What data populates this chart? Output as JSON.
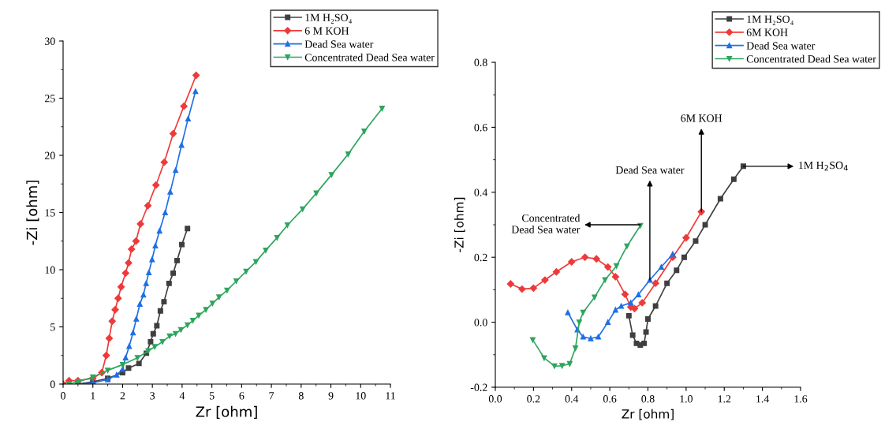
{
  "chart_data": [
    {
      "type": "line",
      "xlabel": "Zr [ohm]",
      "ylabel": "-Zi [ohm]",
      "xlim": [
        0,
        11
      ],
      "ylim": [
        0,
        30
      ],
      "xticks": [
        0,
        1,
        2,
        3,
        4,
        5,
        6,
        7,
        8,
        9,
        10,
        11
      ],
      "yticks": [
        0,
        5,
        10,
        15,
        20,
        25,
        30
      ],
      "legend": "top right",
      "grid": false,
      "series": [
        {
          "name": "1M H₂SO₄",
          "color": "#3f3f3f",
          "marker": "square",
          "x": [
            0.5,
            1.0,
            1.5,
            2.0,
            2.2,
            2.55,
            2.8,
            2.94,
            3.03,
            3.15,
            3.27,
            3.39,
            3.56,
            3.7,
            3.83,
            3.99,
            4.18
          ],
          "values": [
            0,
            0.2,
            0.5,
            1.0,
            1.4,
            1.8,
            2.7,
            3.7,
            4.4,
            5.1,
            6.4,
            7.2,
            8.8,
            9.7,
            10.8,
            12.2,
            13.6
          ]
        },
        {
          "name": "6 M KOH",
          "color": "#ee3a3a",
          "marker": "diamond",
          "x": [
            0,
            0.2,
            0.5,
            1.0,
            1.3,
            1.45,
            1.55,
            1.65,
            1.75,
            1.85,
            1.95,
            2.1,
            2.2,
            2.3,
            2.45,
            2.6,
            2.85,
            3.12,
            3.4,
            3.7,
            4.06,
            4.47
          ],
          "values": [
            0,
            0.3,
            0.3,
            0.5,
            1.0,
            2.5,
            4.0,
            5.5,
            6.5,
            7.5,
            8.5,
            9.7,
            10.6,
            11.8,
            12.5,
            14.0,
            15.6,
            17.4,
            19.4,
            21.9,
            24.3,
            27.0
          ]
        },
        {
          "name": "Dead Sea water",
          "color": "#1f6fe5",
          "marker": "triangle",
          "x": [
            0.5,
            1.0,
            1.5,
            1.8,
            2.0,
            2.1,
            2.22,
            2.35,
            2.46,
            2.58,
            2.7,
            2.79,
            2.88,
            2.99,
            3.1,
            3.24,
            3.43,
            3.6,
            3.78,
            3.98,
            4.2,
            4.45
          ],
          "values": [
            0,
            0.1,
            0.4,
            0.8,
            1.3,
            2.3,
            3.3,
            4.5,
            5.7,
            7.0,
            7.8,
            8.8,
            9.75,
            10.9,
            12.1,
            13.4,
            15.0,
            16.8,
            18.7,
            20.9,
            23.2,
            25.6
          ]
        },
        {
          "name": "Concentrated Dead Sea water",
          "color": "#2ea55e",
          "marker": "triangle_down",
          "x": [
            0.2,
            0.5,
            1.0,
            1.5,
            2.0,
            2.5,
            2.86,
            3.08,
            3.34,
            3.58,
            3.78,
            3.96,
            4.18,
            4.36,
            4.56,
            4.8,
            5.02,
            5.24,
            5.51,
            5.82,
            6.15,
            6.48,
            6.81,
            7.19,
            7.54,
            8.05,
            8.51,
            9.02,
            9.58,
            10.12,
            10.72
          ],
          "values": [
            0,
            0.2,
            0.6,
            1.2,
            1.7,
            2.3,
            2.9,
            3.26,
            3.7,
            4.2,
            4.4,
            4.75,
            5.16,
            5.55,
            6.0,
            6.5,
            7.05,
            7.6,
            8.2,
            9.0,
            9.85,
            10.7,
            11.7,
            12.8,
            13.9,
            15.3,
            16.7,
            18.3,
            20.1,
            22.1,
            24.1
          ]
        }
      ]
    },
    {
      "type": "line",
      "xlabel": "Zr [ohm]",
      "ylabel": "-Zi [ohm]",
      "xlim": [
        0,
        1.6
      ],
      "ylim": [
        -0.2,
        0.8
      ],
      "xticks": [
        {
          "value": 0,
          "label": "0.0"
        },
        0.2,
        0.4,
        0.6,
        0.8,
        {
          "value": 1,
          "label": "1.0"
        },
        1.2,
        1.4,
        1.6
      ],
      "yticks": [
        {
          "value": -0.2,
          "label": "-0.2"
        },
        {
          "value": 0,
          "label": "0.0"
        },
        0.2,
        0.4,
        0.6,
        0.8
      ],
      "legend": "top right",
      "grid": false,
      "annotations": [
        {
          "text": "Concentrated\nDead Sea water",
          "x": 0.76,
          "y": 0.3
        },
        {
          "text": "Dead Sea water",
          "x": 0.81,
          "y": 0.13
        },
        {
          "text": "6M KOH",
          "x": 1.08,
          "y": 0.34
        },
        {
          "text": "1M H$_{2}$SO$_{4}$",
          "x": 1.3,
          "y": 0.48
        }
      ],
      "series": [
        {
          "name": "1M H₂SO₄",
          "color": "#3f3f3f",
          "marker": "square",
          "x": [
            0.7,
            0.72,
            0.74,
            0.76,
            0.78,
            0.79,
            0.8,
            0.84,
            0.9,
            0.95,
            0.99,
            1.05,
            1.1,
            1.18,
            1.25,
            1.3
          ],
          "values": [
            0.02,
            -0.04,
            -0.065,
            -0.07,
            -0.065,
            -0.03,
            0.01,
            0.05,
            0.12,
            0.16,
            0.2,
            0.25,
            0.3,
            0.38,
            0.44,
            0.48
          ]
        },
        {
          "name": "6M KOH",
          "color": "#ee3a3a",
          "marker": "diamond",
          "x": [
            0.08,
            0.14,
            0.2,
            0.26,
            0.32,
            0.4,
            0.47,
            0.53,
            0.59,
            0.63,
            0.68,
            0.71,
            0.73,
            0.77,
            0.84,
            0.93,
            1.0,
            1.08
          ],
          "values": [
            0.118,
            0.102,
            0.105,
            0.13,
            0.155,
            0.186,
            0.2,
            0.195,
            0.17,
            0.14,
            0.086,
            0.047,
            0.042,
            0.06,
            0.12,
            0.2,
            0.26,
            0.34
          ]
        },
        {
          "name": "Dead Sea water",
          "color": "#1f6fe5",
          "marker": "triangle",
          "x": [
            0.38,
            0.43,
            0.46,
            0.5,
            0.54,
            0.59,
            0.63,
            0.66,
            0.71,
            0.75,
            0.81,
            0.87,
            0.93
          ],
          "values": [
            0.03,
            -0.023,
            -0.045,
            -0.05,
            -0.045,
            0.0,
            0.038,
            0.05,
            0.06,
            0.085,
            0.13,
            0.17,
            0.21
          ]
        },
        {
          "name": "Concentrated Dead Sea water",
          "color": "#2ea55e",
          "marker": "triangle_down",
          "x": [
            0.196,
            0.256,
            0.31,
            0.35,
            0.39,
            0.42,
            0.44,
            0.46,
            0.52,
            0.575,
            0.635,
            0.69,
            0.76
          ],
          "values": [
            -0.054,
            -0.11,
            -0.135,
            -0.134,
            -0.128,
            -0.08,
            0.0,
            0.03,
            0.077,
            0.13,
            0.173,
            0.234,
            0.297
          ]
        }
      ]
    }
  ]
}
